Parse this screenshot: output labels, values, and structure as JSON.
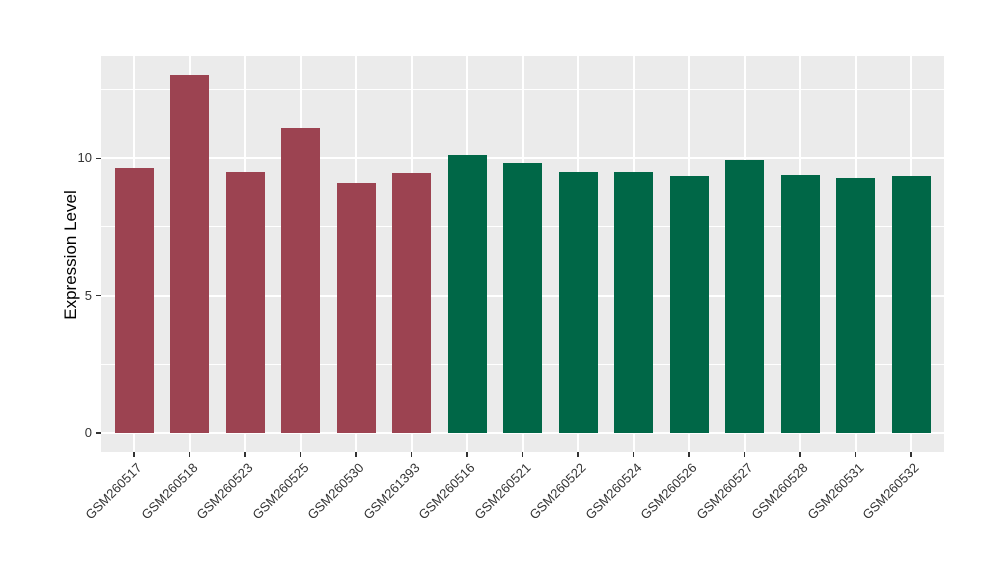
{
  "chart_data": {
    "type": "bar",
    "title": "",
    "xlabel": "",
    "ylabel": "Expression Level",
    "categories": [
      "GSM260517",
      "GSM260518",
      "GSM260523",
      "GSM260525",
      "GSM260530",
      "GSM261393",
      "GSM260516",
      "GSM260521",
      "GSM260522",
      "GSM260524",
      "GSM260526",
      "GSM260527",
      "GSM260528",
      "GSM260531",
      "GSM260532"
    ],
    "values": [
      9.66,
      13.05,
      9.49,
      11.12,
      9.11,
      9.45,
      10.13,
      9.83,
      9.49,
      9.5,
      9.37,
      9.95,
      9.38,
      9.29,
      9.35
    ],
    "bar_groups": [
      "group1",
      "group1",
      "group1",
      "group1",
      "group1",
      "group1",
      "group2",
      "group2",
      "group2",
      "group2",
      "group2",
      "group2",
      "group2",
      "group2",
      "group2"
    ],
    "group_colors": {
      "group1": "#9C4351",
      "group2": "#006747"
    },
    "y_axis": {
      "tick_labels": [
        "0",
        "5",
        "10"
      ],
      "ticks": [
        0,
        5,
        10
      ],
      "minor_ticks": [
        2.5,
        7.5,
        12.5
      ],
      "range": [
        -0.68,
        13.7
      ]
    },
    "legend": "none",
    "grid": "on",
    "style": {
      "panel_bg": "#EBEBEB",
      "grid_color": "#FFFFFF",
      "axis_text_color": "#333333",
      "tick_mark_color": "#333333",
      "axis_title_color": "#000000"
    }
  }
}
